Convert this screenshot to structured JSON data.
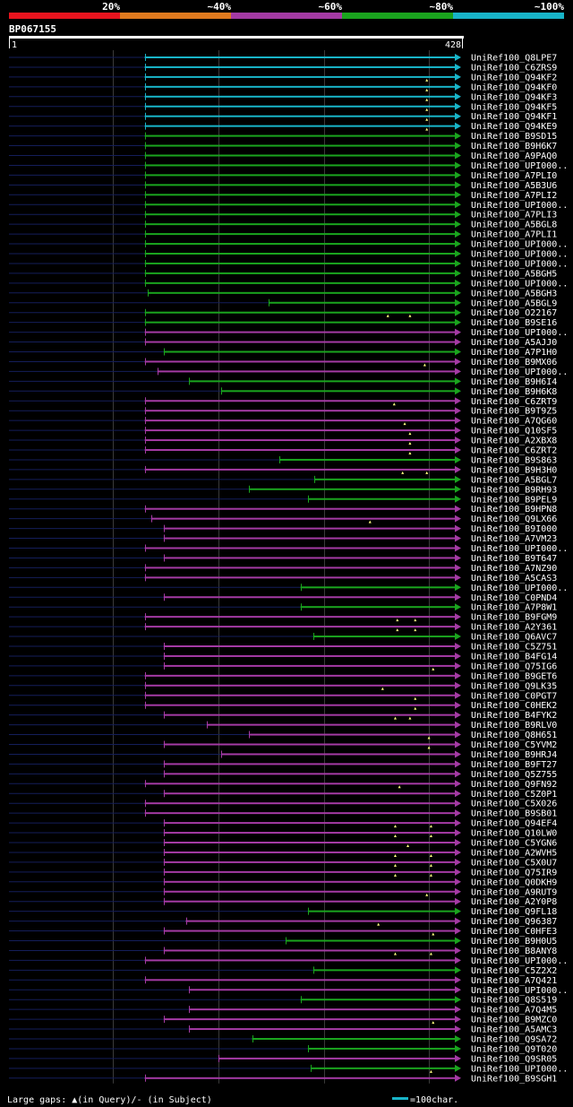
{
  "query_id": "BP067155",
  "colors": {
    "c20": "#e8141e",
    "c40": "#e07a1e",
    "c60": "#a43aa4",
    "c80": "#1aa41e",
    "c100": "#18b4c8",
    "subject_pre": "#141e5a",
    "gap_marker": "#ffff80",
    "background": "#000000",
    "text": "#ffffff"
  },
  "legend": {
    "percent_labels": [
      "20%",
      "~40%",
      "~60%",
      "~80%",
      "~100%"
    ],
    "gaps_text": "Large gaps: ▲(in Query)/- (in Subject)",
    "scale_text": "=100char."
  },
  "chart_data": {
    "type": "alignment-overview",
    "title": "BP067155",
    "query_start": 1,
    "query_end": 428,
    "tick_labels": [
      "1",
      "428"
    ],
    "categories_identity": [
      "20%",
      "~40%",
      "~60%",
      "~80%",
      "~100%"
    ],
    "hits": [
      {
        "name": "UniRef100_Q8LPE7",
        "color": "c100",
        "start": 130,
        "gaps": []
      },
      {
        "name": "UniRef100_C6ZRS9",
        "color": "c100",
        "start": 130,
        "gaps": []
      },
      {
        "name": "UniRef100_Q94KF2",
        "color": "c100",
        "start": 130,
        "gaps": [
          398
        ]
      },
      {
        "name": "UniRef100_Q94KF0",
        "color": "c100",
        "start": 130,
        "gaps": [
          398
        ]
      },
      {
        "name": "UniRef100_Q94KF3",
        "color": "c100",
        "start": 130,
        "gaps": [
          398
        ]
      },
      {
        "name": "UniRef100_Q94KF5",
        "color": "c100",
        "start": 130,
        "gaps": [
          398
        ]
      },
      {
        "name": "UniRef100_Q94KF1",
        "color": "c100",
        "start": 130,
        "gaps": [
          398
        ]
      },
      {
        "name": "UniRef100_Q94KE9",
        "color": "c100",
        "start": 130,
        "gaps": [
          398
        ]
      },
      {
        "name": "UniRef100_B9SD15",
        "color": "c80",
        "start": 130,
        "gaps": []
      },
      {
        "name": "UniRef100_B9H6K7",
        "color": "c80",
        "start": 130,
        "gaps": []
      },
      {
        "name": "UniRef100_A9PAQ0",
        "color": "c80",
        "start": 130,
        "gaps": []
      },
      {
        "name": "UniRef100_UPI000..",
        "color": "c80",
        "start": 130,
        "gaps": []
      },
      {
        "name": "UniRef100_A7PLI0",
        "color": "c80",
        "start": 130,
        "gaps": []
      },
      {
        "name": "UniRef100_A5B3U6",
        "color": "c80",
        "start": 130,
        "gaps": []
      },
      {
        "name": "UniRef100_A7PLI2",
        "color": "c80",
        "start": 130,
        "gaps": []
      },
      {
        "name": "UniRef100_UPI000..",
        "color": "c80",
        "start": 130,
        "gaps": []
      },
      {
        "name": "UniRef100_A7PLI3",
        "color": "c80",
        "start": 130,
        "gaps": []
      },
      {
        "name": "UniRef100_A5BGL8",
        "color": "c80",
        "start": 130,
        "gaps": []
      },
      {
        "name": "UniRef100_A7PLI1",
        "color": "c80",
        "start": 130,
        "gaps": []
      },
      {
        "name": "UniRef100_UPI000..",
        "color": "c80",
        "start": 130,
        "gaps": []
      },
      {
        "name": "UniRef100_UPI000..",
        "color": "c80",
        "start": 130,
        "gaps": []
      },
      {
        "name": "UniRef100_UPI000..",
        "color": "c80",
        "start": 130,
        "gaps": []
      },
      {
        "name": "UniRef100_A5BGH5",
        "color": "c80",
        "start": 130,
        "gaps": []
      },
      {
        "name": "UniRef100_UPI000..",
        "color": "c80",
        "start": 130,
        "gaps": []
      },
      {
        "name": "UniRef100_A5BGH3",
        "color": "c80",
        "start": 133,
        "gaps": []
      },
      {
        "name": "UniRef100_A5BGL9",
        "color": "c80",
        "start": 248,
        "gaps": []
      },
      {
        "name": "UniRef100_O22167",
        "color": "c80",
        "start": 130,
        "gaps": [
          361,
          382
        ]
      },
      {
        "name": "UniRef100_B9SE16",
        "color": "c80",
        "start": 130,
        "gaps": []
      },
      {
        "name": "UniRef100_UPI000..",
        "color": "c60",
        "start": 130,
        "gaps": []
      },
      {
        "name": "UniRef100_A5AJJ0",
        "color": "c60",
        "start": 130,
        "gaps": []
      },
      {
        "name": "UniRef100_A7P1H0",
        "color": "c80",
        "start": 148,
        "gaps": []
      },
      {
        "name": "UniRef100_B9MX06",
        "color": "c60",
        "start": 130,
        "gaps": [
          396
        ]
      },
      {
        "name": "UniRef100_UPI000..",
        "color": "c60",
        "start": 142,
        "gaps": []
      },
      {
        "name": "UniRef100_B9H6I4",
        "color": "c80",
        "start": 172,
        "gaps": []
      },
      {
        "name": "UniRef100_B9H6K8",
        "color": "c80",
        "start": 203,
        "gaps": []
      },
      {
        "name": "UniRef100_C6ZRT9",
        "color": "c60",
        "start": 130,
        "gaps": [
          367
        ]
      },
      {
        "name": "UniRef100_B9T9Z5",
        "color": "c60",
        "start": 130,
        "gaps": []
      },
      {
        "name": "UniRef100_A7QG60",
        "color": "c60",
        "start": 130,
        "gaps": [
          377
        ]
      },
      {
        "name": "UniRef100_Q10SF5",
        "color": "c60",
        "start": 130,
        "gaps": [
          382
        ]
      },
      {
        "name": "UniRef100_A2XBX8",
        "color": "c60",
        "start": 130,
        "gaps": [
          382
        ]
      },
      {
        "name": "UniRef100_C6ZRT2",
        "color": "c60",
        "start": 130,
        "gaps": [
          382
        ]
      },
      {
        "name": "UniRef100_B9S863",
        "color": "c80",
        "start": 258,
        "gaps": []
      },
      {
        "name": "UniRef100_B9H3H0",
        "color": "c60",
        "start": 130,
        "gaps": [
          375,
          398
        ]
      },
      {
        "name": "UniRef100_A5BGL7",
        "color": "c80",
        "start": 291,
        "gaps": []
      },
      {
        "name": "UniRef100_B9RH93",
        "color": "c80",
        "start": 229,
        "gaps": []
      },
      {
        "name": "UniRef100_B9PEL9",
        "color": "c80",
        "start": 285,
        "gaps": []
      },
      {
        "name": "UniRef100_B9HPN8",
        "color": "c60",
        "start": 130,
        "gaps": []
      },
      {
        "name": "UniRef100_Q9LX66",
        "color": "c60",
        "start": 136,
        "gaps": [
          344
        ]
      },
      {
        "name": "UniRef100_B9I000",
        "color": "c60",
        "start": 148,
        "gaps": []
      },
      {
        "name": "UniRef100_A7VM23",
        "color": "c60",
        "start": 148,
        "gaps": []
      },
      {
        "name": "UniRef100_UPI000..",
        "color": "c60",
        "start": 130,
        "gaps": []
      },
      {
        "name": "UniRef100_B9T647",
        "color": "c60",
        "start": 148,
        "gaps": []
      },
      {
        "name": "UniRef100_A7NZ90",
        "color": "c60",
        "start": 130,
        "gaps": []
      },
      {
        "name": "UniRef100_A5CAS3",
        "color": "c60",
        "start": 130,
        "gaps": []
      },
      {
        "name": "UniRef100_UPI000..",
        "color": "c80",
        "start": 278,
        "gaps": []
      },
      {
        "name": "UniRef100_C0PND4",
        "color": "c60",
        "start": 148,
        "gaps": []
      },
      {
        "name": "UniRef100_A7P8W1",
        "color": "c80",
        "start": 278,
        "gaps": []
      },
      {
        "name": "UniRef100_B9FGM9",
        "color": "c60",
        "start": 130,
        "gaps": [
          370,
          387
        ]
      },
      {
        "name": "UniRef100_A2Y361",
        "color": "c60",
        "start": 130,
        "gaps": [
          370,
          387
        ]
      },
      {
        "name": "UniRef100_Q6AVC7",
        "color": "c80",
        "start": 290,
        "gaps": []
      },
      {
        "name": "UniRef100_C5Z751",
        "color": "c60",
        "start": 148,
        "gaps": []
      },
      {
        "name": "UniRef100_B4FG14",
        "color": "c60",
        "start": 148,
        "gaps": []
      },
      {
        "name": "UniRef100_Q75IG6",
        "color": "c60",
        "start": 148,
        "gaps": [
          404
        ]
      },
      {
        "name": "UniRef100_B9GET6",
        "color": "c60",
        "start": 130,
        "gaps": []
      },
      {
        "name": "UniRef100_Q9LK35",
        "color": "c60",
        "start": 130,
        "gaps": [
          356
        ]
      },
      {
        "name": "UniRef100_C0PGT7",
        "color": "c60",
        "start": 130,
        "gaps": [
          387
        ]
      },
      {
        "name": "UniRef100_C0HEK2",
        "color": "c60",
        "start": 130,
        "gaps": [
          387
        ]
      },
      {
        "name": "UniRef100_B4FYK2",
        "color": "c60",
        "start": 148,
        "gaps": [
          368,
          382
        ]
      },
      {
        "name": "UniRef100_B9RLV0",
        "color": "c60",
        "start": 189,
        "gaps": []
      },
      {
        "name": "UniRef100_Q8H651",
        "color": "c60",
        "start": 229,
        "gaps": [
          400
        ]
      },
      {
        "name": "UniRef100_C5YVM2",
        "color": "c60",
        "start": 148,
        "gaps": [
          400
        ]
      },
      {
        "name": "UniRef100_B9HRJ4",
        "color": "c60",
        "start": 203,
        "gaps": []
      },
      {
        "name": "UniRef100_B9FT27",
        "color": "c60",
        "start": 148,
        "gaps": []
      },
      {
        "name": "UniRef100_Q5Z755",
        "color": "c60",
        "start": 148,
        "gaps": []
      },
      {
        "name": "UniRef100_Q9FN92",
        "color": "c60",
        "start": 130,
        "gaps": [
          372
        ]
      },
      {
        "name": "UniRef100_C5Z0P1",
        "color": "c60",
        "start": 148,
        "gaps": []
      },
      {
        "name": "UniRef100_C5X026",
        "color": "c60",
        "start": 130,
        "gaps": []
      },
      {
        "name": "UniRef100_B9SB01",
        "color": "c60",
        "start": 130,
        "gaps": []
      },
      {
        "name": "UniRef100_Q94EF4",
        "color": "c60",
        "start": 148,
        "gaps": [
          368,
          402
        ]
      },
      {
        "name": "UniRef100_Q10LW0",
        "color": "c60",
        "start": 148,
        "gaps": [
          368,
          402
        ]
      },
      {
        "name": "UniRef100_C5YGN6",
        "color": "c60",
        "start": 148,
        "gaps": [
          380
        ]
      },
      {
        "name": "UniRef100_A2WVH5",
        "color": "c60",
        "start": 148,
        "gaps": [
          368,
          402
        ]
      },
      {
        "name": "UniRef100_C5X0U7",
        "color": "c60",
        "start": 148,
        "gaps": [
          368,
          402
        ]
      },
      {
        "name": "UniRef100_Q75IR9",
        "color": "c60",
        "start": 148,
        "gaps": [
          368,
          402
        ]
      },
      {
        "name": "UniRef100_Q0DKH9",
        "color": "c60",
        "start": 148,
        "gaps": []
      },
      {
        "name": "UniRef100_A9RUT9",
        "color": "c60",
        "start": 148,
        "gaps": [
          398
        ]
      },
      {
        "name": "UniRef100_A2Y0P8",
        "color": "c60",
        "start": 148,
        "gaps": []
      },
      {
        "name": "UniRef100_Q9FL18",
        "color": "c80",
        "start": 285,
        "gaps": []
      },
      {
        "name": "UniRef100_Q96387",
        "color": "c60",
        "start": 169,
        "gaps": [
          352
        ]
      },
      {
        "name": "UniRef100_C0HFE3",
        "color": "c60",
        "start": 148,
        "gaps": [
          404
        ]
      },
      {
        "name": "UniRef100_B9H0U5",
        "color": "c80",
        "start": 264,
        "gaps": []
      },
      {
        "name": "UniRef100_B8ANY8",
        "color": "c60",
        "start": 148,
        "gaps": [
          368,
          402
        ]
      },
      {
        "name": "UniRef100_UPI000..",
        "color": "c60",
        "start": 130,
        "gaps": []
      },
      {
        "name": "UniRef100_C5Z2X2",
        "color": "c80",
        "start": 290,
        "gaps": []
      },
      {
        "name": "UniRef100_A7Q421",
        "color": "c60",
        "start": 130,
        "gaps": []
      },
      {
        "name": "UniRef100_UPI000..",
        "color": "c60",
        "start": 172,
        "gaps": []
      },
      {
        "name": "UniRef100_Q8S519",
        "color": "c80",
        "start": 278,
        "gaps": []
      },
      {
        "name": "UniRef100_A7Q4M5",
        "color": "c60",
        "start": 172,
        "gaps": []
      },
      {
        "name": "UniRef100_B9MZC0",
        "color": "c60",
        "start": 148,
        "gaps": [
          404
        ]
      },
      {
        "name": "UniRef100_A5AMC3",
        "color": "c60",
        "start": 172,
        "gaps": []
      },
      {
        "name": "UniRef100_Q9SA72",
        "color": "c80",
        "start": 232,
        "gaps": []
      },
      {
        "name": "UniRef100_Q9T020",
        "color": "c80",
        "start": 285,
        "gaps": []
      },
      {
        "name": "UniRef100_Q9SR05",
        "color": "c60",
        "start": 200,
        "gaps": []
      },
      {
        "name": "UniRef100_UPI000..",
        "color": "c80",
        "start": 288,
        "gaps": [
          402
        ]
      },
      {
        "name": "UniRef100_B9SGH1",
        "color": "c60",
        "start": 130,
        "gaps": []
      }
    ]
  }
}
